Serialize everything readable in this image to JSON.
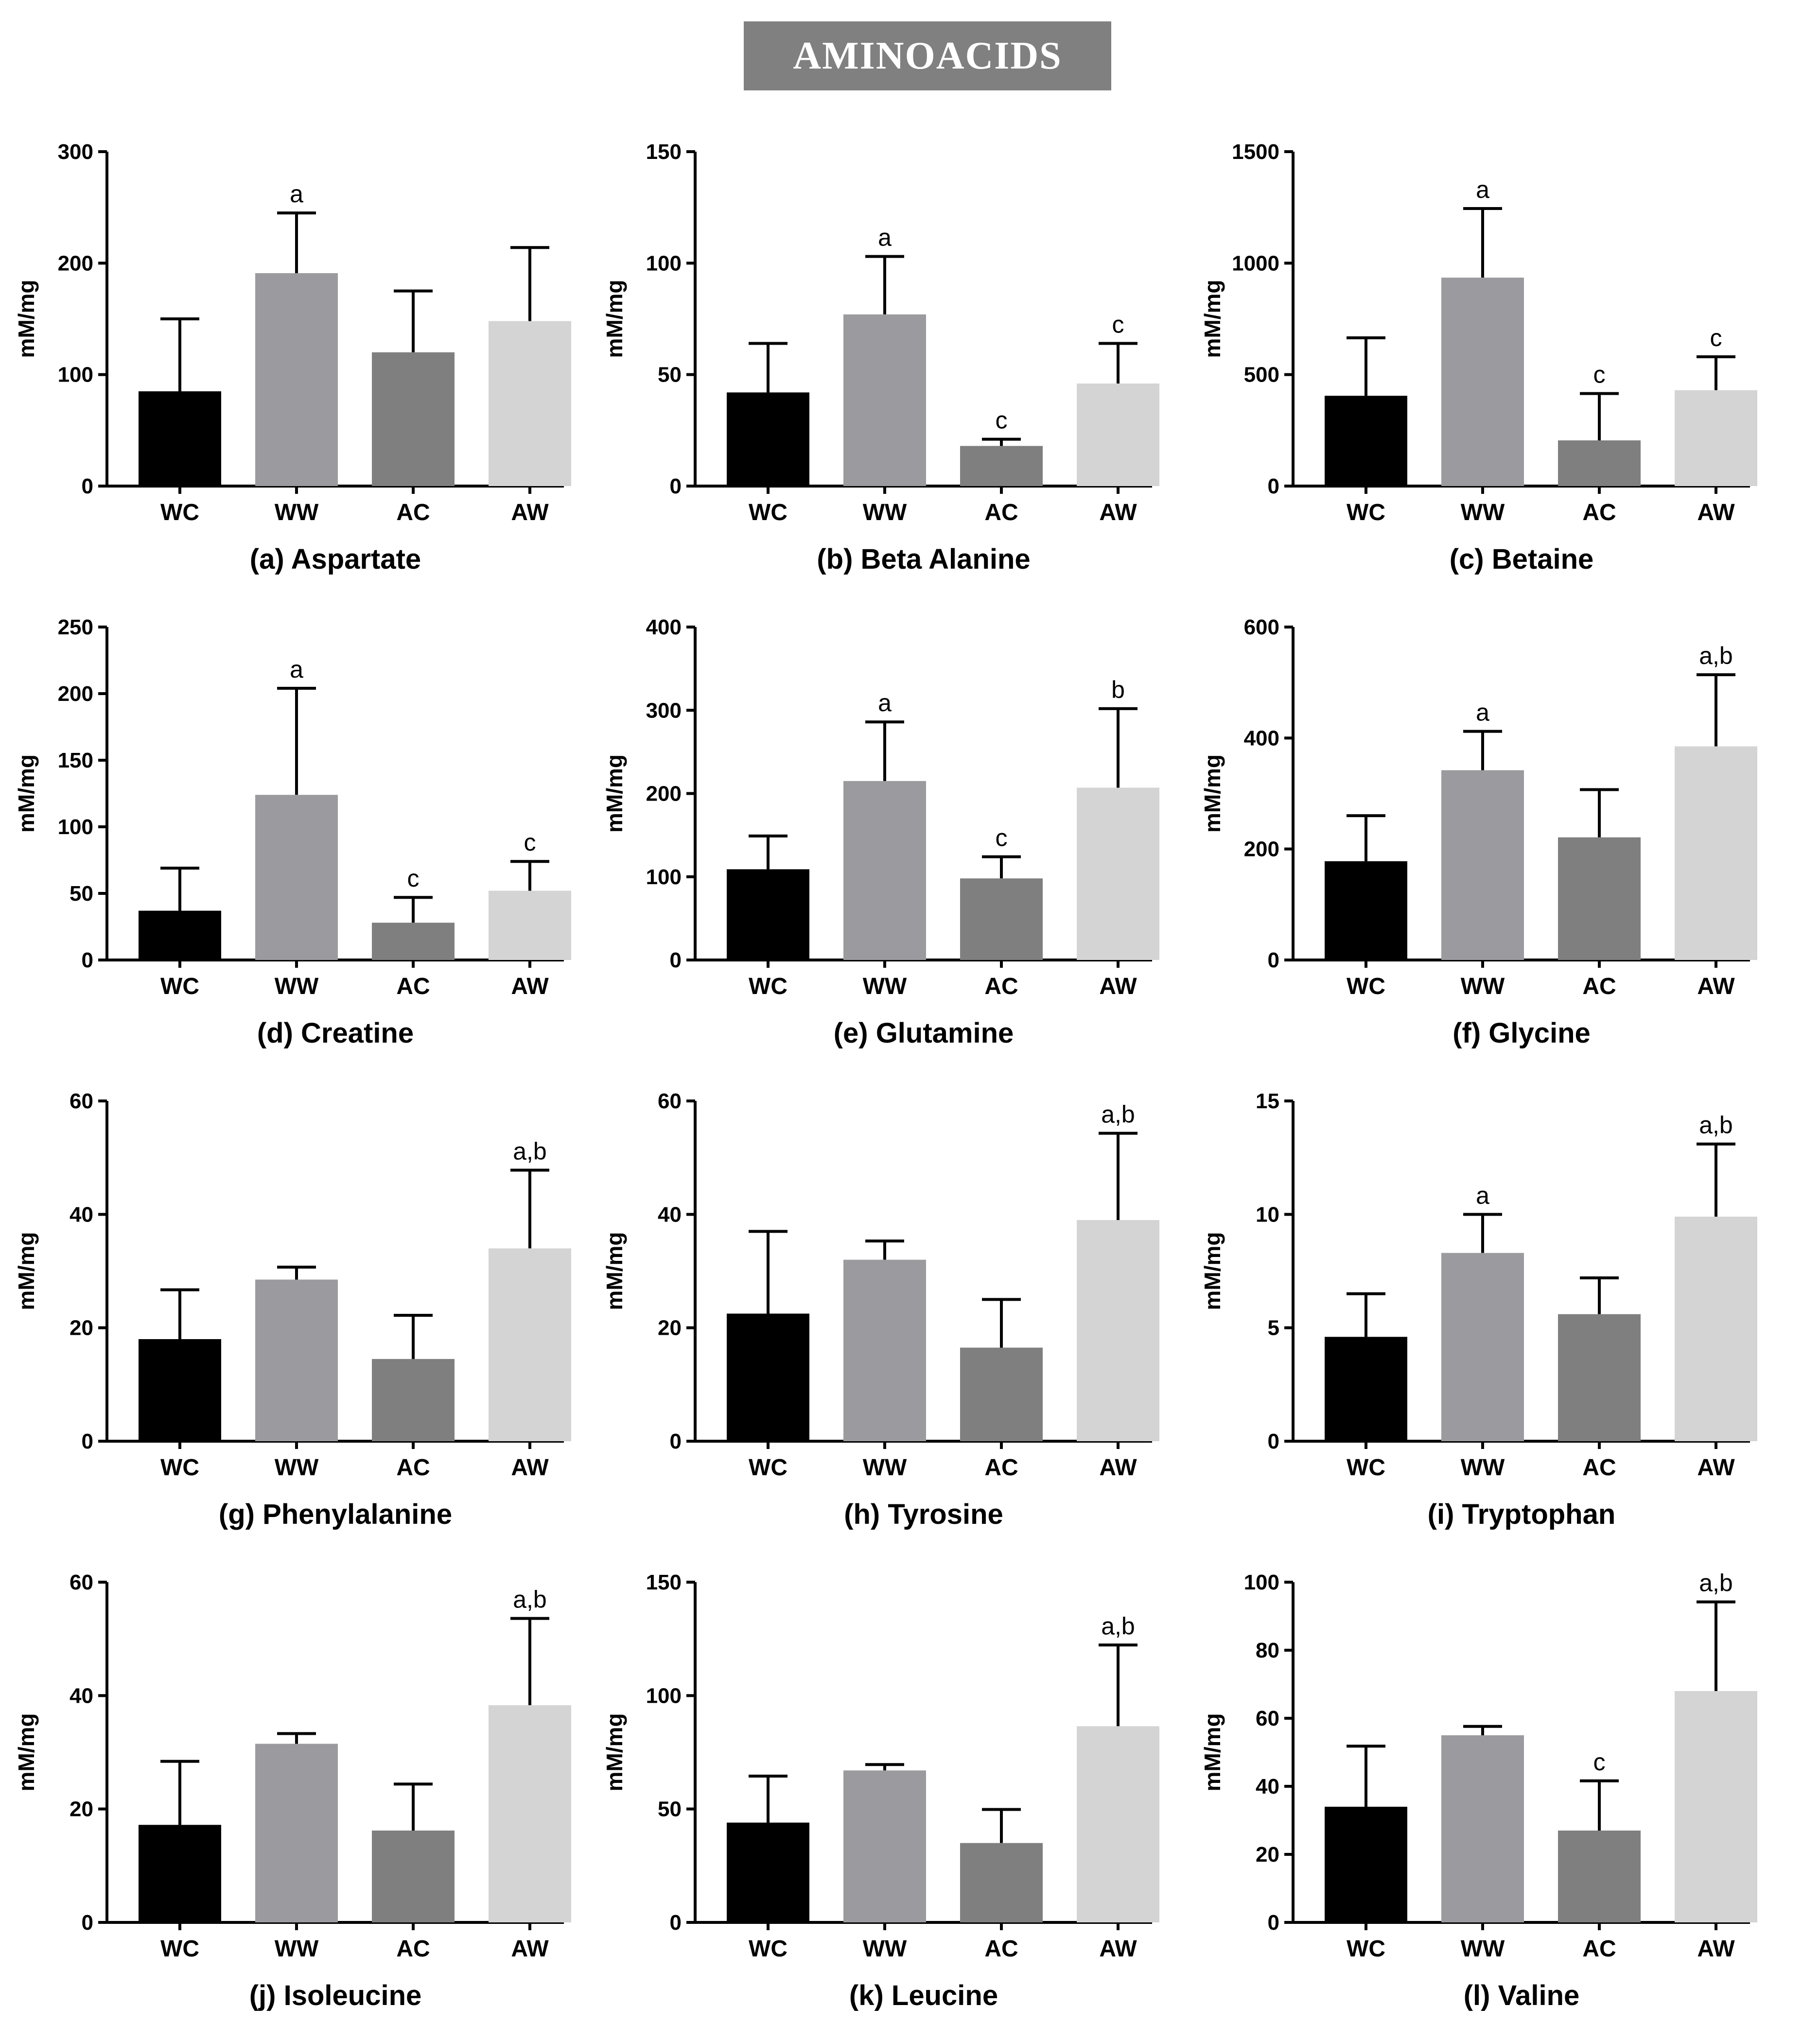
{
  "banner": {
    "title": "AMINOACIDS"
  },
  "colors": {
    "WC": "#000000",
    "WW": "#9b9b9f",
    "AC": "#7f7f7f",
    "AW": "#d4d4d4"
  },
  "chart_data": [
    {
      "type": "bar",
      "title": "(a) Aspartate",
      "ylabel": "mM/mg",
      "categories": [
        "WC",
        "WW",
        "AC",
        "AW"
      ],
      "ylim": [
        0,
        300
      ],
      "yticks": [
        0,
        100,
        200,
        300
      ],
      "values": [
        85,
        191,
        120,
        148
      ],
      "errors": [
        65,
        54,
        55,
        66
      ],
      "sig": [
        "",
        "a",
        "",
        ""
      ]
    },
    {
      "type": "bar",
      "title": "(b) Beta Alanine",
      "ylabel": "mM/mg",
      "categories": [
        "WC",
        "WW",
        "AC",
        "AW"
      ],
      "ylim": [
        0,
        150
      ],
      "yticks": [
        0,
        50,
        100,
        150
      ],
      "values": [
        42,
        77,
        18,
        46
      ],
      "errors": [
        22,
        26,
        3,
        18
      ],
      "sig": [
        "",
        "a",
        "c",
        "c"
      ]
    },
    {
      "type": "bar",
      "title": "(c) Betaine",
      "ylabel": "mM/mg",
      "categories": [
        "WC",
        "WW",
        "AC",
        "AW"
      ],
      "ylim": [
        0,
        1500
      ],
      "yticks": [
        0,
        500,
        1000,
        1500
      ],
      "values": [
        405,
        935,
        205,
        430
      ],
      "errors": [
        260,
        310,
        210,
        150
      ],
      "sig": [
        "",
        "a",
        "c",
        "c"
      ]
    },
    {
      "type": "bar",
      "title": "(d) Creatine",
      "ylabel": "mM/mg",
      "categories": [
        "WC",
        "WW",
        "AC",
        "AW"
      ],
      "ylim": [
        0,
        250
      ],
      "yticks": [
        0,
        50,
        100,
        150,
        200,
        250
      ],
      "values": [
        37,
        124,
        28,
        52
      ],
      "errors": [
        32,
        80,
        19,
        22
      ],
      "sig": [
        "",
        "a",
        "c",
        "c"
      ]
    },
    {
      "type": "bar",
      "title": "(e) Glutamine",
      "ylabel": "mM/mg",
      "categories": [
        "WC",
        "WW",
        "AC",
        "AW"
      ],
      "ylim": [
        0,
        400
      ],
      "yticks": [
        0,
        100,
        200,
        300,
        400
      ],
      "values": [
        109,
        215,
        98,
        207
      ],
      "errors": [
        40,
        71,
        26,
        95
      ],
      "sig": [
        "",
        "a",
        "c",
        "b"
      ]
    },
    {
      "type": "bar",
      "title": "(f) Glycine",
      "ylabel": "mM/mg",
      "categories": [
        "WC",
        "WW",
        "AC",
        "AW"
      ],
      "ylim": [
        0,
        600
      ],
      "yticks": [
        0,
        200,
        400,
        600
      ],
      "values": [
        178,
        342,
        221,
        385
      ],
      "errors": [
        82,
        70,
        86,
        129
      ],
      "sig": [
        "",
        "a",
        "",
        "a,b"
      ]
    },
    {
      "type": "bar",
      "title": "(g) Phenylalanine",
      "ylabel": "mM/mg",
      "categories": [
        "WC",
        "WW",
        "AC",
        "AW"
      ],
      "ylim": [
        0,
        60
      ],
      "yticks": [
        0,
        20,
        40,
        60
      ],
      "values": [
        18,
        28.5,
        14.5,
        34
      ],
      "errors": [
        8.7,
        2.2,
        7.7,
        13.8
      ],
      "sig": [
        "",
        "",
        "",
        "a,b"
      ]
    },
    {
      "type": "bar",
      "title": "(h) Tyrosine",
      "ylabel": "mM/mg",
      "categories": [
        "WC",
        "WW",
        "AC",
        "AW"
      ],
      "ylim": [
        0,
        60
      ],
      "yticks": [
        0,
        20,
        40,
        60
      ],
      "values": [
        22.5,
        32,
        16.5,
        39
      ],
      "errors": [
        14.5,
        3.3,
        8.5,
        15.3
      ],
      "sig": [
        "",
        "",
        "",
        "a,b"
      ]
    },
    {
      "type": "bar",
      "title": "(i) Tryptophan",
      "ylabel": "mM/mg",
      "categories": [
        "WC",
        "WW",
        "AC",
        "AW"
      ],
      "ylim": [
        0,
        15
      ],
      "yticks": [
        0,
        5,
        10,
        15
      ],
      "values": [
        4.6,
        8.3,
        5.6,
        9.9
      ],
      "errors": [
        1.9,
        1.7,
        1.6,
        3.2
      ],
      "sig": [
        "",
        "a",
        "",
        "a,b"
      ]
    },
    {
      "type": "bar",
      "title": "(j) Isoleucine",
      "ylabel": "mM/mg",
      "categories": [
        "WC",
        "WW",
        "AC",
        "AW"
      ],
      "ylim": [
        0,
        60
      ],
      "yticks": [
        0,
        20,
        40,
        60
      ],
      "values": [
        17.2,
        31.5,
        16.2,
        38.3
      ],
      "errors": [
        11.2,
        1.8,
        8.2,
        15.3
      ],
      "sig": [
        "",
        "",
        "",
        "a,b"
      ]
    },
    {
      "type": "bar",
      "title": "(k) Leucine",
      "ylabel": "mM/mg",
      "categories": [
        "WC",
        "WW",
        "AC",
        "AW"
      ],
      "ylim": [
        0,
        150
      ],
      "yticks": [
        0,
        50,
        100,
        150
      ],
      "values": [
        44,
        67,
        35,
        86.5
      ],
      "errors": [
        20.5,
        2.6,
        14.8,
        35.8
      ],
      "sig": [
        "",
        "",
        "",
        "a,b"
      ]
    },
    {
      "type": "bar",
      "title": "(l)  Valine",
      "ylabel": "mM/mg",
      "categories": [
        "WC",
        "WW",
        "AC",
        "AW"
      ],
      "ylim": [
        0,
        100
      ],
      "yticks": [
        0,
        20,
        40,
        60,
        80,
        100
      ],
      "values": [
        34,
        55,
        27,
        68
      ],
      "errors": [
        17.8,
        2.6,
        14.6,
        26.2
      ],
      "sig": [
        "",
        "",
        "c",
        "a,b"
      ]
    }
  ]
}
